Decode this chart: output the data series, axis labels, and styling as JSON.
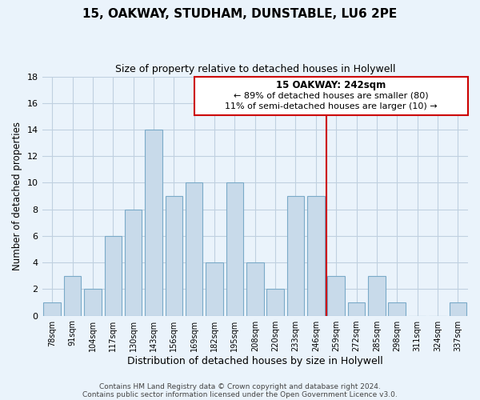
{
  "title": "15, OAKWAY, STUDHAM, DUNSTABLE, LU6 2PE",
  "subtitle": "Size of property relative to detached houses in Holywell",
  "xlabel": "Distribution of detached houses by size in Holywell",
  "ylabel": "Number of detached properties",
  "bin_labels": [
    "78sqm",
    "91sqm",
    "104sqm",
    "117sqm",
    "130sqm",
    "143sqm",
    "156sqm",
    "169sqm",
    "182sqm",
    "195sqm",
    "208sqm",
    "220sqm",
    "233sqm",
    "246sqm",
    "259sqm",
    "272sqm",
    "285sqm",
    "298sqm",
    "311sqm",
    "324sqm",
    "337sqm"
  ],
  "bar_heights": [
    1,
    3,
    2,
    6,
    8,
    14,
    9,
    10,
    4,
    10,
    4,
    2,
    9,
    9,
    3,
    1,
    3,
    1,
    0,
    0,
    1
  ],
  "bar_color": "#c8daea",
  "bar_edge_color": "#7aaac8",
  "grid_color": "#c0d0e0",
  "background_color": "#eaf3fb",
  "ylim": [
    0,
    18
  ],
  "yticks": [
    0,
    2,
    4,
    6,
    8,
    10,
    12,
    14,
    16,
    18
  ],
  "marker_bin_index": 13,
  "marker_color": "#cc0000",
  "annotation_title": "15 OAKWAY: 242sqm",
  "annotation_line1": "← 89% of detached houses are smaller (80)",
  "annotation_line2": "11% of semi-detached houses are larger (10) →",
  "annotation_box_color": "#ffffff",
  "annotation_box_edge": "#cc0000",
  "footer1": "Contains HM Land Registry data © Crown copyright and database right 2024.",
  "footer2": "Contains public sector information licensed under the Open Government Licence v3.0."
}
